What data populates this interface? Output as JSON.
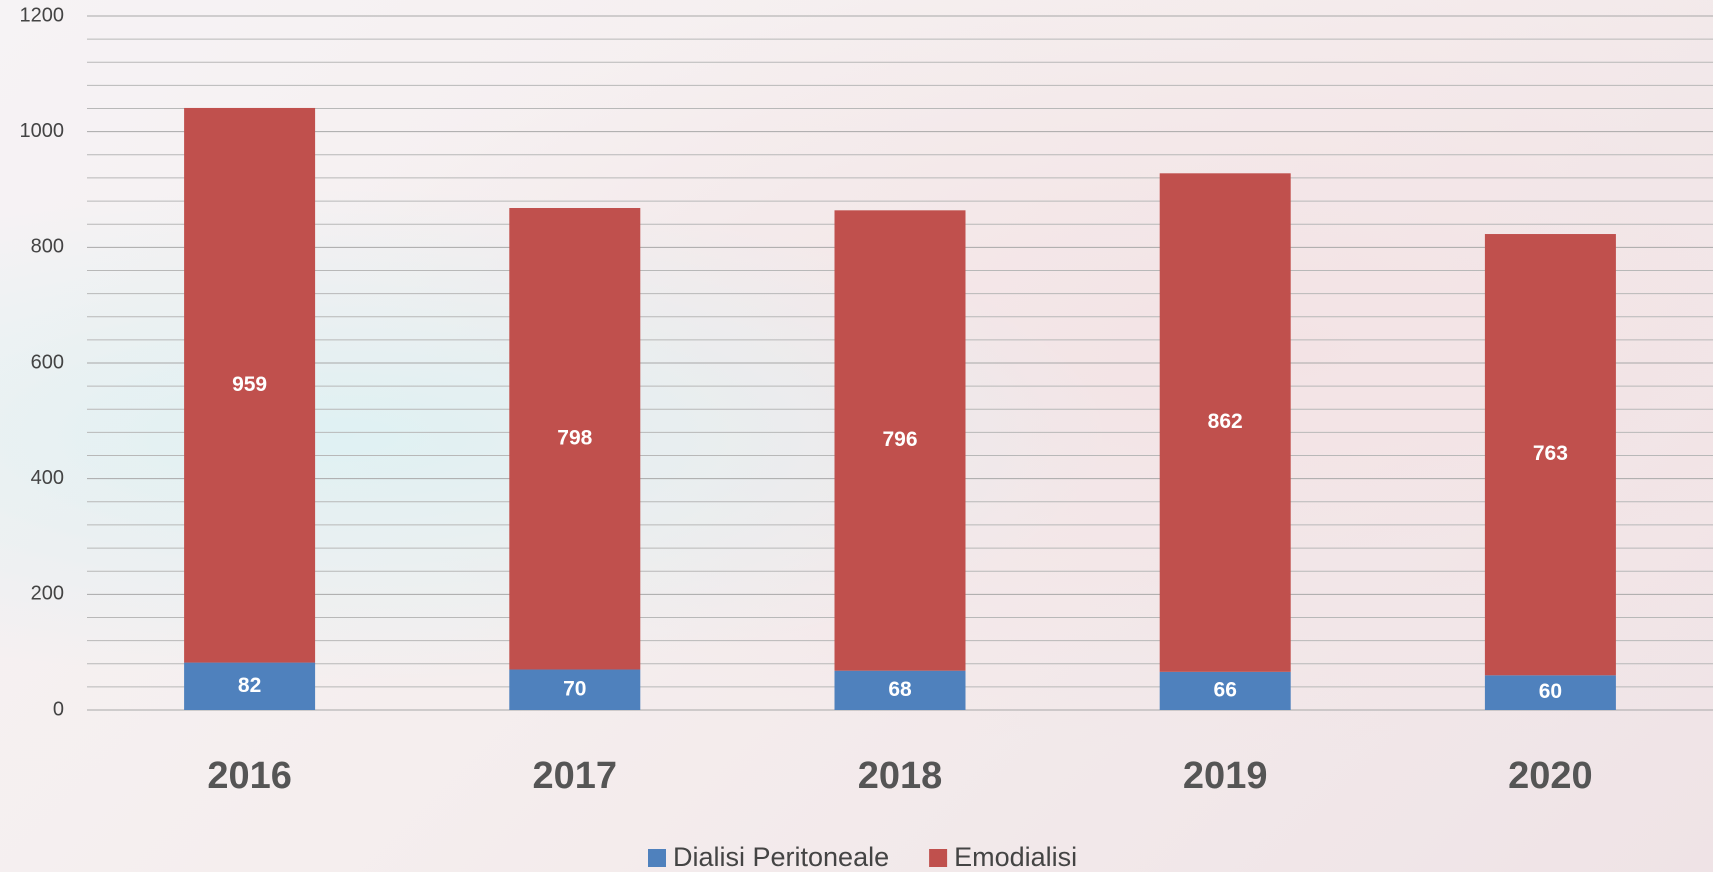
{
  "chart_data": {
    "type": "stacked_bar",
    "categories": [
      "2016",
      "2017",
      "2018",
      "2019",
      "2020"
    ],
    "series": [
      {
        "name": "Dialisi Peritoneale",
        "color": "#4f81bd",
        "values": [
          82,
          70,
          68,
          66,
          60
        ]
      },
      {
        "name": "Emodialisi",
        "color": "#c0504d",
        "values": [
          959,
          798,
          796,
          862,
          763
        ]
      }
    ],
    "ylim": [
      0,
      1200
    ],
    "yticks": [
      0,
      200,
      400,
      600,
      800,
      1000,
      1200
    ],
    "grid": true,
    "legend": "bottom"
  }
}
